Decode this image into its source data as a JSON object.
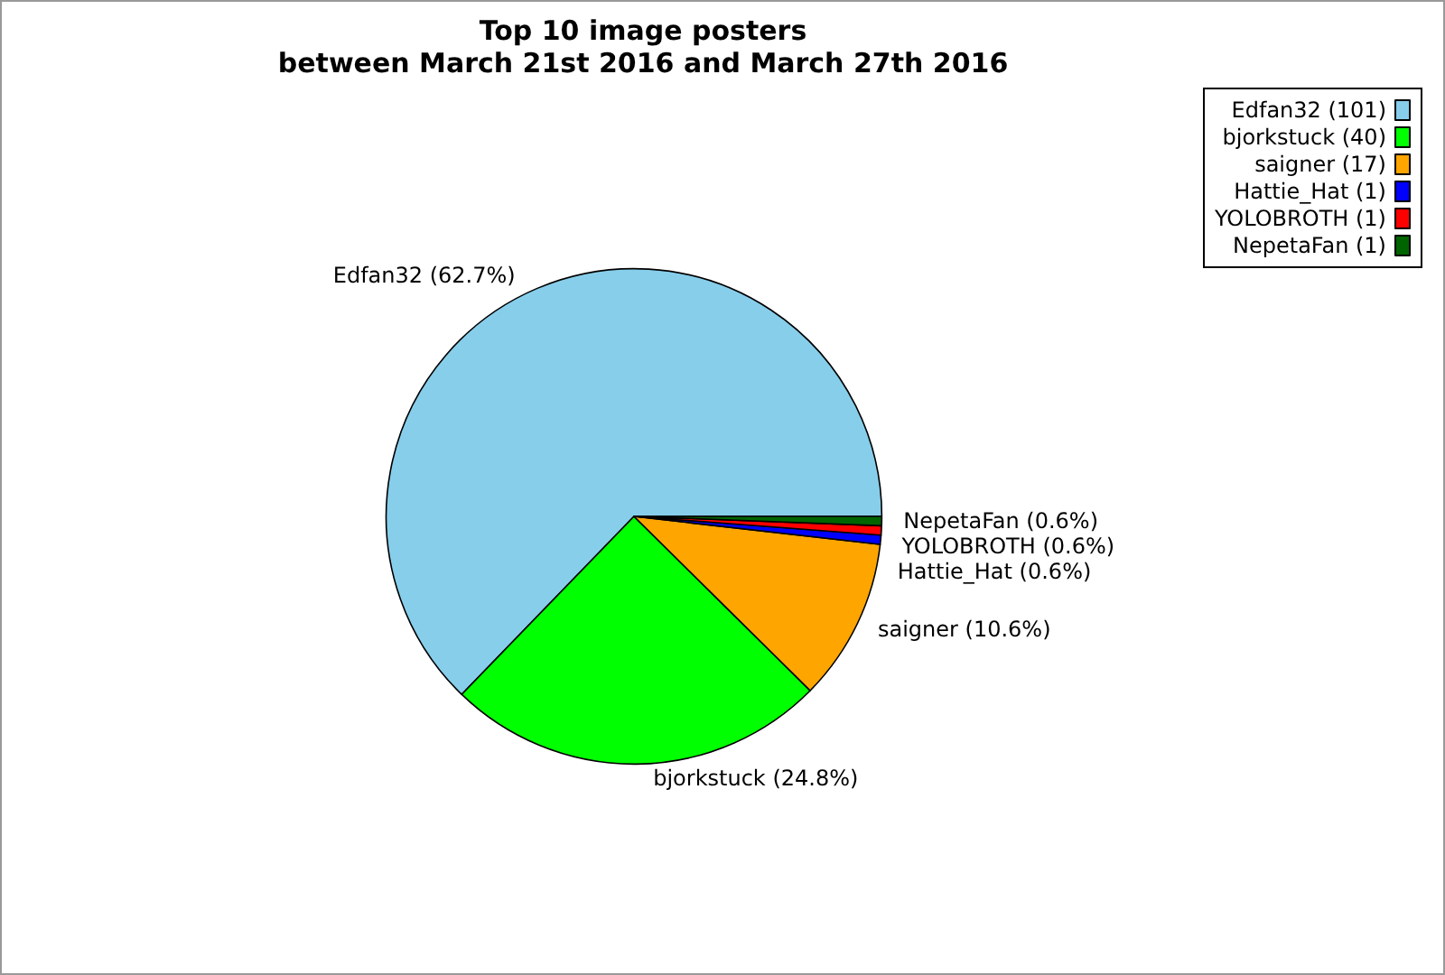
{
  "chart_data": {
    "type": "pie",
    "title": "Top 10 image posters\nbetween March 21st 2016 and March 27th 2016",
    "categories": [
      "Edfan32 (101)",
      "bjorkstuck (40)",
      "saigner (17)",
      "Hattie_Hat (1)",
      "YOLOBROTH (1)",
      "NepetaFan (1)"
    ],
    "values": [
      62.7,
      24.8,
      10.6,
      0.6,
      0.6,
      0.6
    ],
    "value_labels": [
      "Edfan32 (62.7%)",
      "bjorkstuck (24.8%)",
      "saigner (10.6%)",
      "Hattie_Hat (0.6%)",
      "YOLOBROTH (0.6%)",
      "NepetaFan (0.6%)"
    ],
    "colors": [
      "#87ceeb",
      "#00ff00",
      "#ffa500",
      "#0000ff",
      "#ff0000",
      "#006400"
    ],
    "legend": "top right"
  }
}
